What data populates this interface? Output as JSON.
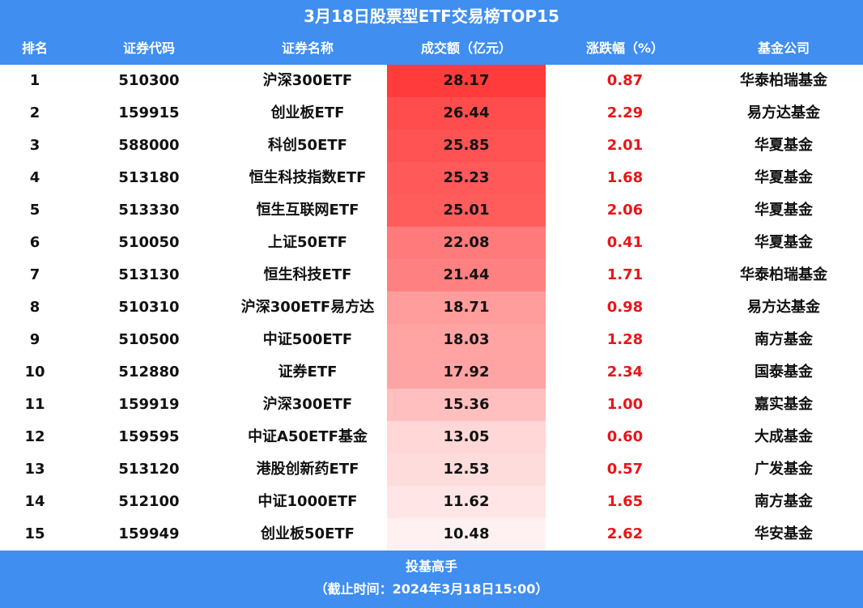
{
  "title": "3月18日股票型ETF交易榜TOP15",
  "headers": {
    "rank": "排名",
    "code": "证券代码",
    "name": "证券名称",
    "volume": "成交额（亿元）",
    "change": "涨跌幅（%）",
    "company": "基金公司"
  },
  "rows": [
    {
      "rank": "1",
      "code": "510300",
      "name": "沪深300ETF",
      "volume": "28.17",
      "change": "0.87",
      "company": "华泰柏瑞基金"
    },
    {
      "rank": "2",
      "code": "159915",
      "name": "创业板ETF",
      "volume": "26.44",
      "change": "2.29",
      "company": "易方达基金"
    },
    {
      "rank": "3",
      "code": "588000",
      "name": "科创50ETF",
      "volume": "25.85",
      "change": "2.01",
      "company": "华夏基金"
    },
    {
      "rank": "4",
      "code": "513180",
      "name": "恒生科技指数ETF",
      "volume": "25.23",
      "change": "1.68",
      "company": "华夏基金"
    },
    {
      "rank": "5",
      "code": "513330",
      "name": "恒生互联网ETF",
      "volume": "25.01",
      "change": "2.06",
      "company": "华夏基金"
    },
    {
      "rank": "6",
      "code": "510050",
      "name": "上证50ETF",
      "volume": "22.08",
      "change": "0.41",
      "company": "华夏基金"
    },
    {
      "rank": "7",
      "code": "513130",
      "name": "恒生科技ETF",
      "volume": "21.44",
      "change": "1.71",
      "company": "华泰柏瑞基金"
    },
    {
      "rank": "8",
      "code": "510310",
      "name": "沪深300ETF易方达",
      "volume": "18.71",
      "change": "0.98",
      "company": "易方达基金"
    },
    {
      "rank": "9",
      "code": "510500",
      "name": "中证500ETF",
      "volume": "18.03",
      "change": "1.28",
      "company": "南方基金"
    },
    {
      "rank": "10",
      "code": "512880",
      "name": "证券ETF",
      "volume": "17.92",
      "change": "2.34",
      "company": "国泰基金"
    },
    {
      "rank": "11",
      "code": "159919",
      "name": "沪深300ETF",
      "volume": "15.36",
      "change": "1.00",
      "company": "嘉实基金"
    },
    {
      "rank": "12",
      "code": "159595",
      "name": "中证A50ETF基金",
      "volume": "13.05",
      "change": "0.60",
      "company": "大成基金"
    },
    {
      "rank": "13",
      "code": "513120",
      "name": "港股创新药ETF",
      "volume": "12.53",
      "change": "0.57",
      "company": "广发基金"
    },
    {
      "rank": "14",
      "code": "512100",
      "name": "中证1000ETF",
      "volume": "11.62",
      "change": "1.65",
      "company": "南方基金"
    },
    {
      "rank": "15",
      "code": "159949",
      "name": "创业板50ETF",
      "volume": "10.48",
      "change": "2.62",
      "company": "华安基金"
    }
  ],
  "footer": {
    "line1": "投基高手",
    "line2": "（截止时间：2024年3月18日15:00）"
  },
  "colors": {
    "header_bg": "#3f8ef0",
    "header_text": "#ffffff",
    "change_text": "#e8161a",
    "heat_max": "#ff3b3b",
    "heat_min": "#fff1f1"
  }
}
